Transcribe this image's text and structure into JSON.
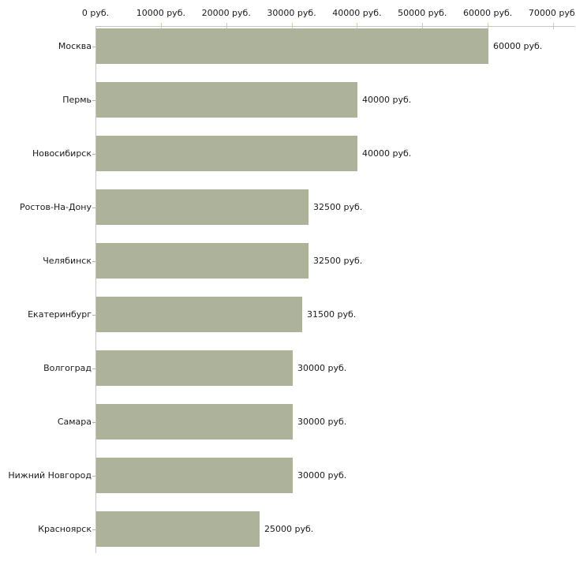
{
  "chart_data": {
    "type": "bar",
    "orientation": "horizontal",
    "categories": [
      "Москва",
      "Пермь",
      "Новосибирск",
      "Ростов-На-Дону",
      "Челябинск",
      "Екатеринбург",
      "Волгоград",
      "Самара",
      "Нижний Новгород",
      "Красноярск"
    ],
    "values": [
      60000,
      40000,
      40000,
      32500,
      32500,
      31500,
      30000,
      30000,
      30000,
      25000
    ],
    "value_labels": [
      "60000 руб.",
      "40000 руб.",
      "40000 руб.",
      "32500 руб.",
      "32500 руб.",
      "31500 руб.",
      "30000 руб.",
      "30000 руб.",
      "30000 руб.",
      "25000 руб."
    ],
    "x_axis": {
      "position": "top",
      "ticks": [
        0,
        10000,
        20000,
        30000,
        40000,
        50000,
        60000,
        70000
      ],
      "tick_labels": [
        "0 руб.",
        "10000 руб.",
        "20000 руб.",
        "30000 руб.",
        "40000 руб.",
        "50000 руб.",
        "60000 руб.",
        "70000 руб."
      ],
      "lim": [
        0,
        70000
      ]
    },
    "unit": "руб.",
    "grid": false,
    "legend": false,
    "colors": {
      "bar": "#adb29a",
      "axis_line": "#c6c6c6",
      "axis_tick": "#ccd0a8",
      "category_tick": "#b2b2a6",
      "text": "#1a1a1a",
      "background": "#ffffff"
    }
  }
}
